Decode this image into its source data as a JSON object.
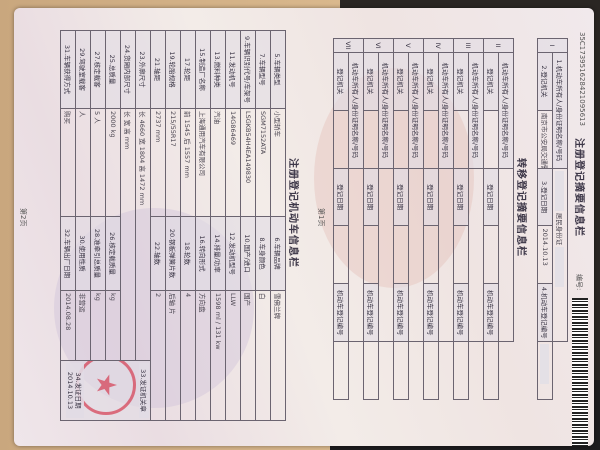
{
  "page1": {
    "title": "注册登记摘要信息栏",
    "serial": "35C173951628421095613",
    "number_label": "编号:",
    "registration": {
      "index": "I",
      "owner_label": "1.机动车所有人/身份证明名称/号码",
      "owner_value": "居民身份证",
      "authority_label": "2.登记机关",
      "authority_value": "南京市公安局交通警察支队",
      "date_label": "3.登记日期",
      "date_value": "2014.10.13",
      "plate_label": "4.机动车登记编号"
    },
    "transfer_title": "转移登记摘要信息栏",
    "transfers": [
      {
        "index": "II"
      },
      {
        "index": "III"
      },
      {
        "index": "IV"
      },
      {
        "index": "V"
      },
      {
        "index": "VI"
      },
      {
        "index": "VII"
      }
    ],
    "transfer_labels": {
      "owner": "机动车所有人/身份证明名称/号码",
      "authority": "登记机关",
      "date": "登记日期",
      "plate": "机动车登记编号"
    },
    "page_label": "第1页"
  },
  "page2": {
    "title": "注册登记机动车信息栏",
    "rows": [
      [
        "5.车辆类型",
        "小型轿车",
        "6.车辆品牌",
        "雪佛兰牌"
      ],
      [
        "7.车辆型号",
        "SGM7152ATA",
        "8.车身颜色",
        "白"
      ],
      [
        "9.车辆识别代号/车架号",
        "LSGKB54H4EA149830",
        "10.国产/进口",
        "国产"
      ],
      [
        "11.发动机号",
        "14G86469",
        "12.发动机型号",
        "LLW"
      ],
      [
        "13.燃料种类",
        "汽油",
        "14.排量/功率",
        "1598 ml / 131 kw"
      ],
      [
        "15.制造厂名称",
        "上海通用汽车有限公司",
        "16.转向形式",
        "方向盘"
      ],
      [
        "17.轮距",
        "前 1545  后 1557 mm",
        "18.轮数",
        "4"
      ],
      [
        "19.轮胎规格",
        "215/55R17",
        "20.钢板弹簧片数",
        "后轴      片"
      ],
      [
        "21.轴距",
        "2737 mm",
        "22.轴数",
        "2"
      ]
    ],
    "lower_rows": [
      [
        "23.外廓尺寸",
        "长 4660  宽 1804  高 1472 mm"
      ],
      [
        "24.货厢内部尺寸",
        "长      宽      高      mm"
      ],
      [
        "25.总质量",
        "2000 kg",
        "26.核定载质量",
        "kg"
      ],
      [
        "27.核定载客",
        "5 人",
        "28.准牵引总质量",
        "kg"
      ],
      [
        "29.驾驶室载客",
        "人",
        "30.使用性质",
        "非营运"
      ],
      [
        "31.车辆获得方式",
        "购买",
        "32.车辆出厂日期",
        "2014.08.28"
      ]
    ],
    "stamp_label": "33.发证机关章",
    "issue_date_label": "34.发证日期",
    "issue_date": "2014.10.13",
    "page_label": "第2页"
  },
  "colors": {
    "stamp": "#d6465a",
    "line": "#6b6470",
    "paper": "#f1e9ec"
  }
}
